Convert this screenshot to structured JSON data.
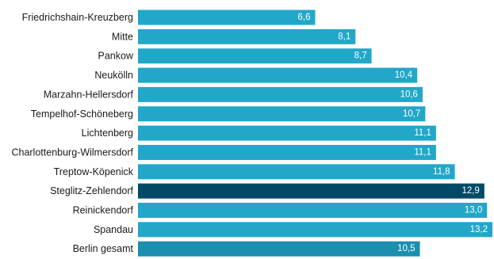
{
  "chart_data": {
    "type": "bar",
    "orientation": "horizontal",
    "categories": [
      "Friedrichshain-Kreuzberg",
      "Mitte",
      "Pankow",
      "Neukölln",
      "Marzahn-Hellersdorf",
      "Tempelhof-Schöneberg",
      "Lichtenberg",
      "Charlottenburg-Wilmersdorf",
      "Treptow-Köpenick",
      "Steglitz-Zehlendorf",
      "Reinickendorf",
      "Spandau",
      "Berlin gesamt"
    ],
    "values": [
      6.6,
      8.1,
      8.7,
      10.4,
      10.6,
      10.7,
      11.1,
      11.1,
      11.8,
      12.9,
      13.0,
      13.2,
      10.5
    ],
    "value_labels": [
      "6,6",
      "8,1",
      "8,7",
      "10,4",
      "10,6",
      "10,7",
      "11,1",
      "11,1",
      "11,8",
      "12,9",
      "13,0",
      "13,2",
      "10,5"
    ],
    "bar_colors": [
      "#22a7c9",
      "#22a7c9",
      "#22a7c9",
      "#22a7c9",
      "#22a7c9",
      "#22a7c9",
      "#22a7c9",
      "#22a7c9",
      "#22a7c9",
      "#004a66",
      "#22a7c9",
      "#22a7c9",
      "#1b8fb0"
    ],
    "xlim": [
      0,
      13.2
    ],
    "grid": false,
    "legend": "none"
  }
}
